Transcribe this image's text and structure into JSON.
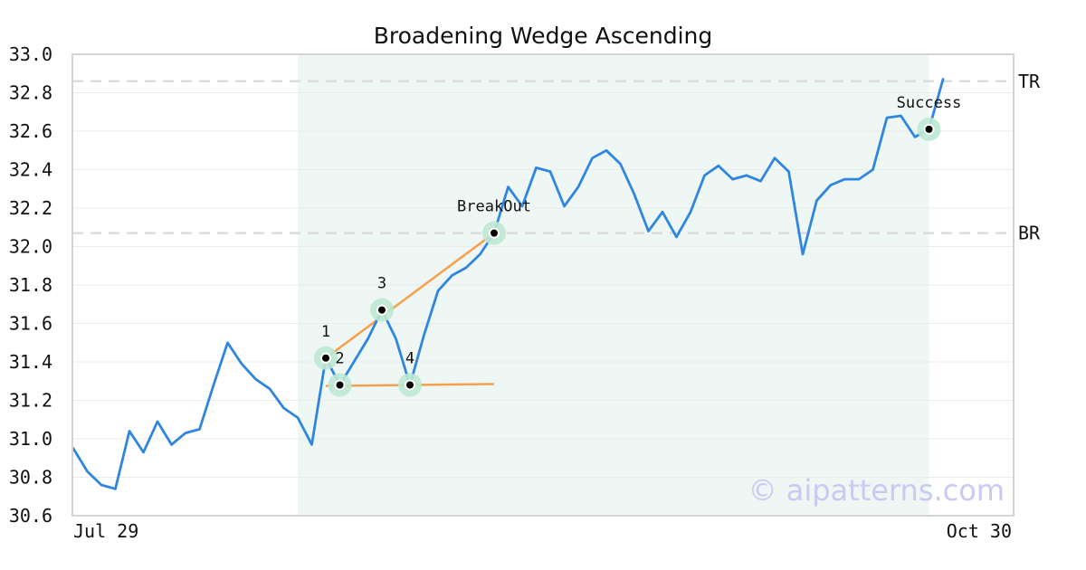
{
  "chart_data": {
    "type": "line",
    "title": "Broadening Wedge Ascending",
    "xlabel": "",
    "ylabel": "",
    "ylim": [
      30.6,
      33.0
    ],
    "yticks": [
      30.6,
      30.8,
      31.0,
      31.2,
      31.4,
      31.6,
      31.8,
      32.0,
      32.2,
      32.4,
      32.6,
      32.8,
      33.0
    ],
    "ytick_labels": [
      "30.6",
      "30.8",
      "31.0",
      "31.2",
      "31.4",
      "31.6",
      "31.8",
      "32.0",
      "32.2",
      "32.4",
      "32.6",
      "32.8",
      "33.0"
    ],
    "x_tick_labels": [
      "Jul 29",
      "Oct 30"
    ],
    "grid": true,
    "series": [
      {
        "values": [
          30.95,
          30.83,
          30.76,
          30.74,
          31.04,
          30.93,
          31.09,
          30.97,
          31.03,
          31.05,
          31.28,
          31.5,
          31.39,
          31.31,
          31.26,
          31.16,
          31.11,
          30.97,
          31.42,
          31.28,
          31.4,
          31.52,
          31.67,
          31.52,
          31.28,
          31.54,
          31.77,
          31.85,
          31.89,
          31.96,
          32.07,
          32.31,
          32.21,
          32.41,
          32.39,
          32.21,
          32.31,
          32.46,
          32.5,
          32.43,
          32.27,
          32.08,
          32.18,
          32.05,
          32.18,
          32.37,
          32.42,
          32.35,
          32.37,
          32.34,
          32.46,
          32.39,
          31.96,
          32.24,
          32.32,
          32.35,
          32.35,
          32.4,
          32.67,
          32.68,
          32.57,
          32.61,
          32.87
        ]
      }
    ],
    "pattern_region": {
      "start_index": 16,
      "end_index": 61
    },
    "pattern_lines": [
      {
        "from": {
          "index": 18,
          "value": 31.42
        },
        "to": {
          "index": 30,
          "value": 32.07
        }
      },
      {
        "from": {
          "index": 18,
          "value": 31.275
        },
        "to": {
          "index": 30,
          "value": 31.285
        }
      }
    ],
    "reference_lines": [
      {
        "label": "TR",
        "value": 32.86
      },
      {
        "label": "BR",
        "value": 32.07
      }
    ],
    "points": [
      {
        "label": "1",
        "index": 18,
        "value": 31.42,
        "label_pos": "above"
      },
      {
        "label": "2",
        "index": 19,
        "value": 31.28,
        "label_pos": "above"
      },
      {
        "label": "3",
        "index": 22,
        "value": 31.67,
        "label_pos": "above"
      },
      {
        "label": "4",
        "index": 24,
        "value": 31.28,
        "label_pos": "above"
      },
      {
        "label": "BreakOut",
        "index": 30,
        "value": 32.07,
        "label_pos": "above"
      },
      {
        "label": "Success",
        "index": 61,
        "value": 32.61,
        "label_pos": "above"
      }
    ],
    "colors": {
      "line": "#2f86e0",
      "pattern_line": "#f5a04c",
      "region": "#eef7f3",
      "marker_halo": "#bde8d3",
      "reference": "#dcdcdc"
    }
  },
  "watermark": "© aipatterns.com"
}
